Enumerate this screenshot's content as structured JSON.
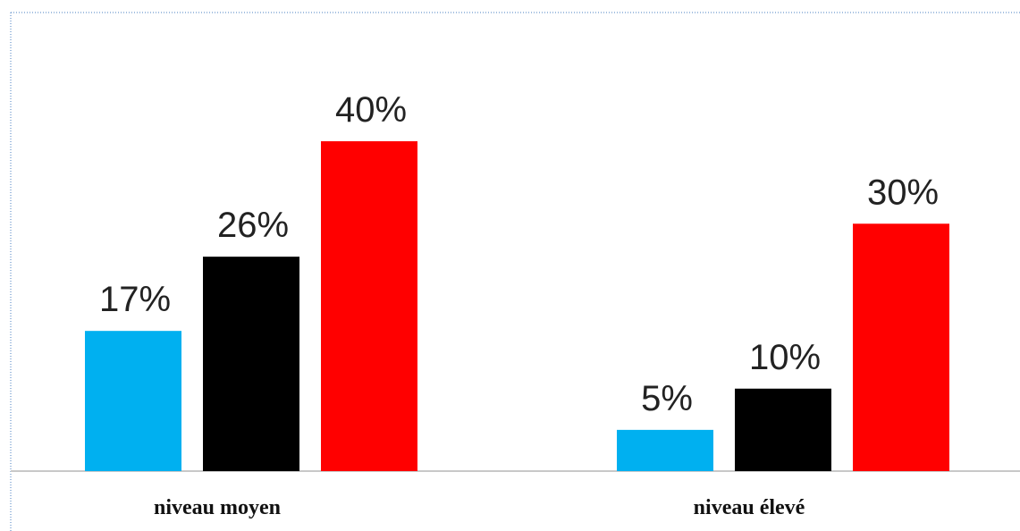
{
  "chart_data": {
    "type": "bar",
    "categories": [
      "niveau moyen",
      "niveau élevé"
    ],
    "series": [
      {
        "color": "#00b0f0",
        "values": [
          17,
          5
        ],
        "value_labels": [
          "17%",
          "5%"
        ]
      },
      {
        "color": "#000000",
        "values": [
          26,
          10
        ],
        "value_labels": [
          "26%",
          "10%"
        ]
      },
      {
        "color": "#ff0000",
        "values": [
          40,
          30
        ],
        "value_labels": [
          "40%",
          "30%"
        ]
      }
    ]
  }
}
